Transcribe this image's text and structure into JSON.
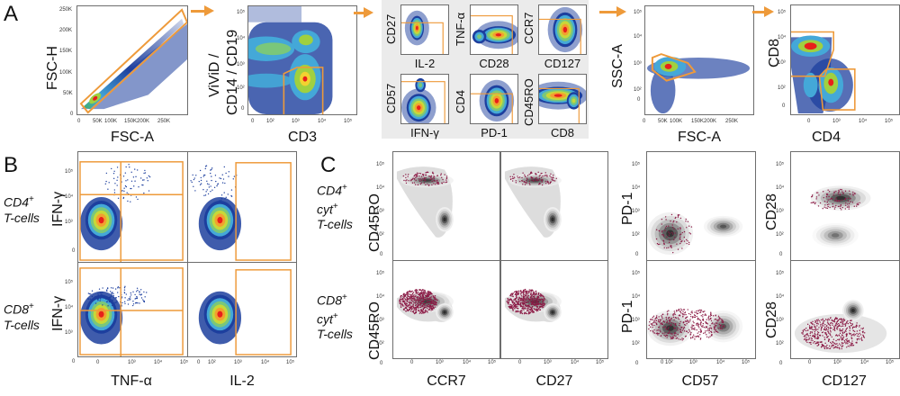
{
  "figure": {
    "panels": {
      "A": {
        "letter": "A",
        "plots": [
          {
            "id": "fsc",
            "xlabel": "FSC-A",
            "ylabel": "FSC-H",
            "yticks": [
              "250K",
              "200K",
              "150K",
              "100K",
              "50K",
              "0"
            ],
            "xticks": [
              "0",
              "50K",
              "100K",
              "150K",
              "200K",
              "250K"
            ],
            "gate": "diagonal singlet gate"
          },
          {
            "id": "vivid",
            "xlabel": "CD3",
            "ylabel1": "ViViD /",
            "ylabel2": "CD14 / CD19",
            "yticks": [
              "10⁵",
              "10⁴",
              "10³",
              "10²",
              "0"
            ],
            "xticks": [
              "0",
              "10²",
              "10³",
              "10⁴",
              "10⁵"
            ],
            "gate": "CD3+ live gate"
          },
          {
            "id": "ssc",
            "xlabel": "FSC-A",
            "ylabel": "SSC-A",
            "yticks": [
              "10⁵",
              "10⁴",
              "10³",
              "10²",
              "0"
            ],
            "xticks": [
              "0",
              "50K",
              "100K",
              "150K",
              "200K",
              "250K"
            ],
            "gate": "lymphocyte gate"
          },
          {
            "id": "cd4cd8",
            "xlabel": "CD4",
            "ylabel": "CD8",
            "yticks": [
              "10⁵",
              "10⁴",
              "10³",
              "10²",
              "0"
            ],
            "xticks": [
              "0",
              "10³",
              "10⁴",
              "10⁵"
            ],
            "gate": "CD4/CD8 gates"
          }
        ],
        "mini_plots": [
          {
            "x": "IL-2",
            "y": "CD27"
          },
          {
            "x": "CD28",
            "y": "TNF-α"
          },
          {
            "x": "CD127",
            "y": "CCR7"
          },
          {
            "x": "IFN-γ",
            "y": "CD57"
          },
          {
            "x": "PD-1",
            "y": "CD4"
          },
          {
            "x": "CD8",
            "y": "CD45RO"
          }
        ]
      },
      "B": {
        "letter": "B",
        "rows": [
          {
            "label_main": "CD4",
            "label_sup": "+",
            "label_sub": "T-cells",
            "ylabel": "IFN-γ"
          },
          {
            "label_main": "CD8",
            "label_sup": "+",
            "label_sub": "T-cells",
            "ylabel": "IFN-γ"
          }
        ],
        "xlabels": [
          "TNF-α",
          "IL-2"
        ],
        "yticks": [
          "10⁵",
          "10⁴",
          "10³",
          "0"
        ],
        "xticks_left": [
          "0",
          "10³",
          "10⁴",
          "10⁵"
        ],
        "xticks_right": [
          "0",
          "10²",
          "10³",
          "10⁴",
          "10⁵"
        ]
      },
      "C": {
        "letter": "C",
        "rows": [
          {
            "l1": "CD4",
            "l1sup": "+",
            "l2": "cyt",
            "l2sup": "+",
            "l3": "T-cells"
          },
          {
            "l1": "CD8",
            "l1sup": "+",
            "l2": "cyt",
            "l2sup": "+",
            "l3": "T-cells"
          }
        ],
        "group1": {
          "ylabel": "CD45RO",
          "xlabels": [
            "CCR7",
            "CD27"
          ]
        },
        "group2": {
          "ylabel": "PD-1",
          "xlabel": "CD57"
        },
        "group3": {
          "ylabel": "CD28",
          "xlabel": "CD127"
        },
        "yticks": [
          "10⁵",
          "10⁴",
          "10³",
          "10²",
          "0"
        ],
        "xticks": [
          "0",
          "10³",
          "10⁴",
          "10⁵"
        ],
        "xticks_cd57": [
          "0 10²",
          "10³",
          "10⁴",
          "10⁵"
        ]
      }
    },
    "colors": {
      "gate": "#ee9a3a",
      "arrow": "#ee9a3a",
      "density_low": "#1a3a9a",
      "density_high": "#e8201a",
      "overlay": "#8b1a45",
      "contour": "#333333"
    }
  }
}
